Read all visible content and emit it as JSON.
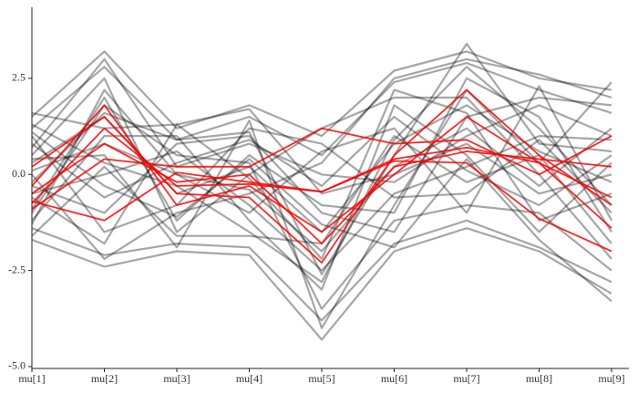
{
  "chart_data": {
    "type": "parcoord",
    "categories": [
      "mu[1]",
      "mu[2]",
      "mu[3]",
      "mu[4]",
      "mu[5]",
      "mu[6]",
      "mu[7]",
      "mu[8]",
      "mu[9]"
    ],
    "ylim": [
      -5.05,
      4.35
    ],
    "yticks": [
      {
        "value": -5,
        "label": "-5.0"
      },
      -2.5,
      {
        "value": 0,
        "label": "0.0"
      },
      2.5
    ],
    "series": [
      {
        "color": "#000000",
        "values": [
          1.2,
          2.8,
          0.9,
          1.5,
          0.5,
          2.4,
          2.9,
          2.2,
          1.6
        ]
      },
      {
        "color": "#000000",
        "values": [
          -1.4,
          -2.1,
          -1.8,
          -1.9,
          -3.8,
          -1.8,
          -1.2,
          -1.9,
          -2.8
        ]
      },
      {
        "color": "#000000",
        "values": [
          0.3,
          1.5,
          -0.5,
          0.2,
          -1.5,
          0.8,
          1.8,
          0.6,
          -0.2
        ]
      },
      {
        "color": "#000000",
        "values": [
          -0.5,
          0.0,
          0.6,
          -0.8,
          -2.5,
          -0.5,
          0.2,
          1.0,
          0.9
        ]
      },
      {
        "color": "#000000",
        "values": [
          1.5,
          3.2,
          1.2,
          1.8,
          1.0,
          2.7,
          3.2,
          2.5,
          2.2
        ]
      },
      {
        "color": "#000000",
        "values": [
          -1.7,
          -2.4,
          -2.0,
          -2.1,
          -4.3,
          -2.0,
          -1.4,
          -2.0,
          -3.1
        ]
      },
      {
        "color": "#000000",
        "values": [
          0.8,
          -0.6,
          0.3,
          0.9,
          -0.3,
          1.5,
          0.1,
          -0.8,
          0.5
        ]
      },
      {
        "color": "#000000",
        "values": [
          -0.9,
          2.0,
          -1.2,
          0.5,
          -0.8,
          -1.0,
          2.5,
          1.5,
          -1.5
        ]
      },
      {
        "color": "#000000",
        "values": [
          0.1,
          0.8,
          0.0,
          -0.4,
          -2.0,
          0.2,
          1.2,
          -0.3,
          1.2
        ]
      },
      {
        "color": "#000000",
        "values": [
          1.0,
          -1.5,
          -0.8,
          1.2,
          0.8,
          -0.6,
          -0.5,
          0.9,
          -1.0
        ]
      },
      {
        "color": "#000000",
        "values": [
          -1.2,
          1.0,
          1.0,
          -1.2,
          -3.0,
          1.8,
          0.5,
          -1.5,
          0.3
        ]
      },
      {
        "color": "#000000",
        "values": [
          0.5,
          2.5,
          -1.5,
          0.0,
          1.2,
          2.0,
          2.0,
          0.0,
          -2.2
        ]
      },
      {
        "color": "#000000",
        "values": [
          -0.3,
          -1.0,
          0.8,
          1.0,
          -1.0,
          -1.5,
          1.5,
          2.0,
          1.8
        ]
      },
      {
        "color": "#000000",
        "values": [
          1.3,
          0.3,
          -0.3,
          -1.5,
          -2.8,
          0.9,
          2.8,
          1.2,
          -0.8
        ]
      },
      {
        "color": "#000000",
        "values": [
          -1.0,
          1.8,
          0.5,
          0.3,
          -3.5,
          -1.2,
          -0.8,
          -1.0,
          -2.5
        ]
      },
      {
        "color": "#000000",
        "values": [
          0.0,
          -2.2,
          -1.0,
          -0.5,
          0.3,
          2.5,
          3.0,
          2.6,
          2.0
        ]
      },
      {
        "color": "#000000",
        "values": [
          1.6,
          1.2,
          1.3,
          1.7,
          -0.5,
          0.0,
          0.8,
          -0.5,
          0.0
        ]
      },
      {
        "color": "#000000",
        "values": [
          -1.6,
          0.2,
          -1.6,
          -1.6,
          -1.8,
          1.0,
          -0.2,
          0.5,
          -1.8
        ]
      },
      {
        "color": "#000000",
        "values": [
          0.7,
          3.0,
          0.2,
          0.8,
          0.0,
          -0.2,
          1.0,
          1.8,
          1.0
        ]
      },
      {
        "color": "#000000",
        "values": [
          -0.6,
          -1.8,
          1.3,
          -0.1,
          -2.2,
          2.2,
          1.6,
          -1.2,
          -0.5
        ]
      },
      {
        "color": "#000000",
        "values": [
          0.4,
          0.5,
          -1.9,
          1.4,
          -4.0,
          -0.8,
          2.2,
          0.3,
          2.4
        ]
      },
      {
        "color": "#000000",
        "values": [
          -1.3,
          2.2,
          0.0,
          -1.0,
          0.6,
          1.2,
          -1.0,
          2.3,
          -1.2
        ]
      },
      {
        "color": "#000000",
        "values": [
          1.1,
          -0.3,
          -1.1,
          0.4,
          -1.3,
          -1.9,
          0.4,
          -1.7,
          -3.3
        ]
      },
      {
        "color": "#000000",
        "values": [
          -0.2,
          1.6,
          0.9,
          1.1,
          -2.6,
          0.5,
          3.4,
          0.8,
          0.6
        ]
      },
      {
        "color": "#ff0000",
        "values": [
          -0.5,
          0.8,
          -0.2,
          0.0,
          -1.8,
          0.2,
          0.6,
          0.4,
          0.2
        ]
      },
      {
        "color": "#ff0000",
        "values": [
          0.2,
          1.5,
          -0.5,
          -0.6,
          -2.3,
          0.5,
          2.2,
          0.5,
          -0.8
        ]
      },
      {
        "color": "#ff0000",
        "values": [
          -0.9,
          0.4,
          0.2,
          0.2,
          1.2,
          0.8,
          0.9,
          0.0,
          1.0
        ]
      },
      {
        "color": "#ff0000",
        "values": [
          -0.3,
          1.8,
          -0.8,
          -0.3,
          -1.5,
          0.0,
          1.5,
          0.3,
          -1.4
        ]
      },
      {
        "color": "#ff0000",
        "values": [
          -0.75,
          1.2,
          -0.3,
          -0.25,
          -0.45,
          0.35,
          0.3,
          -1.15,
          -2.0
        ]
      },
      {
        "color": "#ff0000",
        "values": [
          -0.7,
          -1.2,
          0.05,
          -0.2,
          -0.45,
          0.4,
          0.7,
          0.3,
          -0.6
        ]
      }
    ]
  }
}
